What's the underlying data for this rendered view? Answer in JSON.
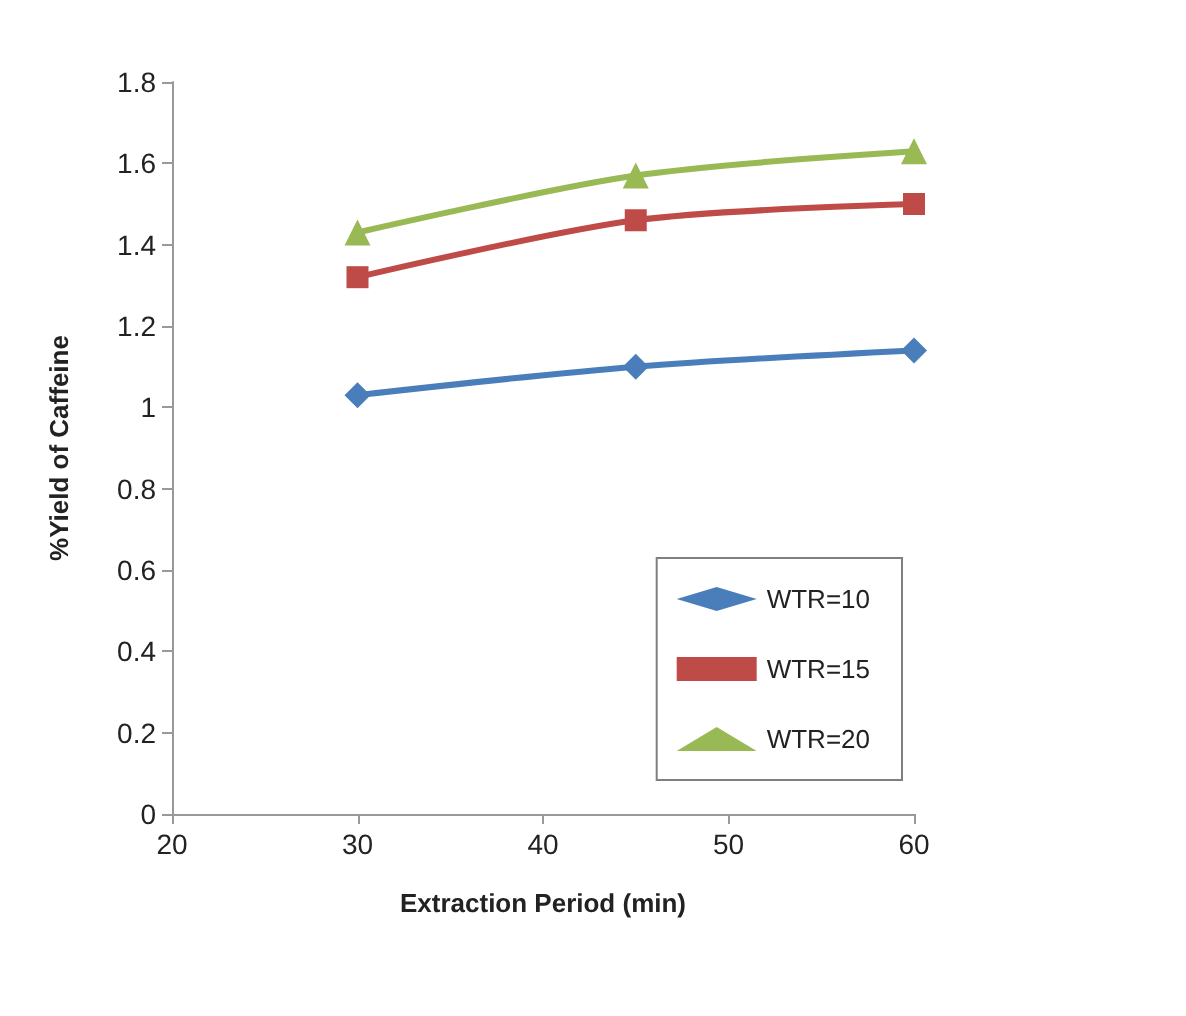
{
  "chart_data": {
    "type": "line",
    "xlabel": "Extraction Period (min)",
    "ylabel": "%Yield of Caffeine",
    "x": [
      30,
      45,
      60
    ],
    "series": [
      {
        "name": "WTR=10",
        "color": "#4a7ebb",
        "values": [
          1.03,
          1.1,
          1.14
        ],
        "marker": "diamond"
      },
      {
        "name": "WTR=15",
        "color": "#be4b48",
        "values": [
          1.32,
          1.46,
          1.5
        ],
        "marker": "square"
      },
      {
        "name": "WTR=20",
        "color": "#98b954",
        "values": [
          1.43,
          1.57,
          1.63
        ],
        "marker": "triangle"
      }
    ],
    "xlim": [
      20,
      60
    ],
    "xticks": [
      20,
      30,
      40,
      50,
      60
    ],
    "ylim": [
      0,
      1.8
    ],
    "yticks": [
      0,
      0.2,
      0.4,
      0.6,
      0.8,
      1,
      1.2,
      1.4,
      1.6,
      1.8
    ],
    "grid": false,
    "legend": "bottom right",
    "line_style": "solid"
  }
}
